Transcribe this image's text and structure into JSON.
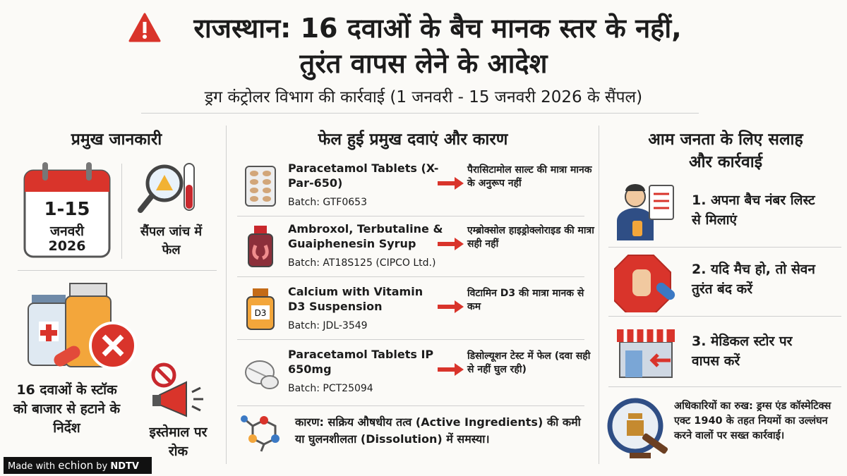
{
  "header": {
    "title_lines": [
      "राजस्थान: 16 दवाओं के बैच मानक स्तर के नहीं,",
      "तुरंत वापस लेने के आदेश"
    ],
    "subtitle": "ड्रग कंट्रोलर विभाग की कार्रवाई (1 जनवरी - 15 जनवरी 2026 के सैंपल)"
  },
  "key_info": {
    "heading": "प्रमुख जानकारी",
    "date": {
      "range": "1-15",
      "month": "जनवरी",
      "year": "2026"
    },
    "sample_status": "सैंपल जांच में फेल",
    "removal": "16 दवाओं के स्टॉक को बाजार से हटाने के निर्देश",
    "ban": "इस्तेमाल पर रोक"
  },
  "failed_drugs": {
    "heading": "फेल हुई प्रमुख दवाएं और कारण",
    "items": [
      {
        "name": "Paracetamol Tablets (X-Par-650)",
        "batch": "Batch: GTF0653",
        "reason": "पैरासिटामोल साल्ट की मात्रा मानक के अनुरूप नहीं"
      },
      {
        "name": "Ambroxol, Terbutaline & Guaiphenesin Syrup",
        "batch": "Batch: AT18S125 (CIPCO Ltd.)",
        "reason": "एम्ब्रोक्सोल हाइड्रोक्लोराइड की मात्रा सही नहीं"
      },
      {
        "name": "Calcium with Vitamin D3 Suspension",
        "batch": "Batch: JDL-3549",
        "reason": "विटामिन D3 की मात्रा मानक से कम"
      },
      {
        "name": "Paracetamol Tablets IP 650mg",
        "batch": "Batch: PCT25094",
        "reason": "डिसोल्यूशन टेस्ट में फेल (दवा सही से नहीं घुल रही)"
      }
    ],
    "cause": "कारण: सक्रिय औषधीय तत्व (Active Ingredients) की कमी या घुलनशीलता (Dissolution) में समस्या।"
  },
  "advice": {
    "heading": "आम जनता के लिए सलाह और कार्रवाई",
    "steps": [
      "1. अपना बैच नंबर लिस्ट से मिलाएं",
      "2. यदि मैच हो, तो सेवन तुरंत बंद करें",
      "3. मेडिकल स्टोर पर वापस करें"
    ],
    "officials": "अधिकारियों का रुख: ड्रग्स एंड कॉस्मेटिक्स एक्ट 1940 के तहत नियमों का उल्लंघन करने वालों पर सख्त कार्रवाई।"
  },
  "watermark": {
    "prefix": "Made with",
    "brand": "echion",
    "by": "by",
    "owner": "NDTV"
  }
}
